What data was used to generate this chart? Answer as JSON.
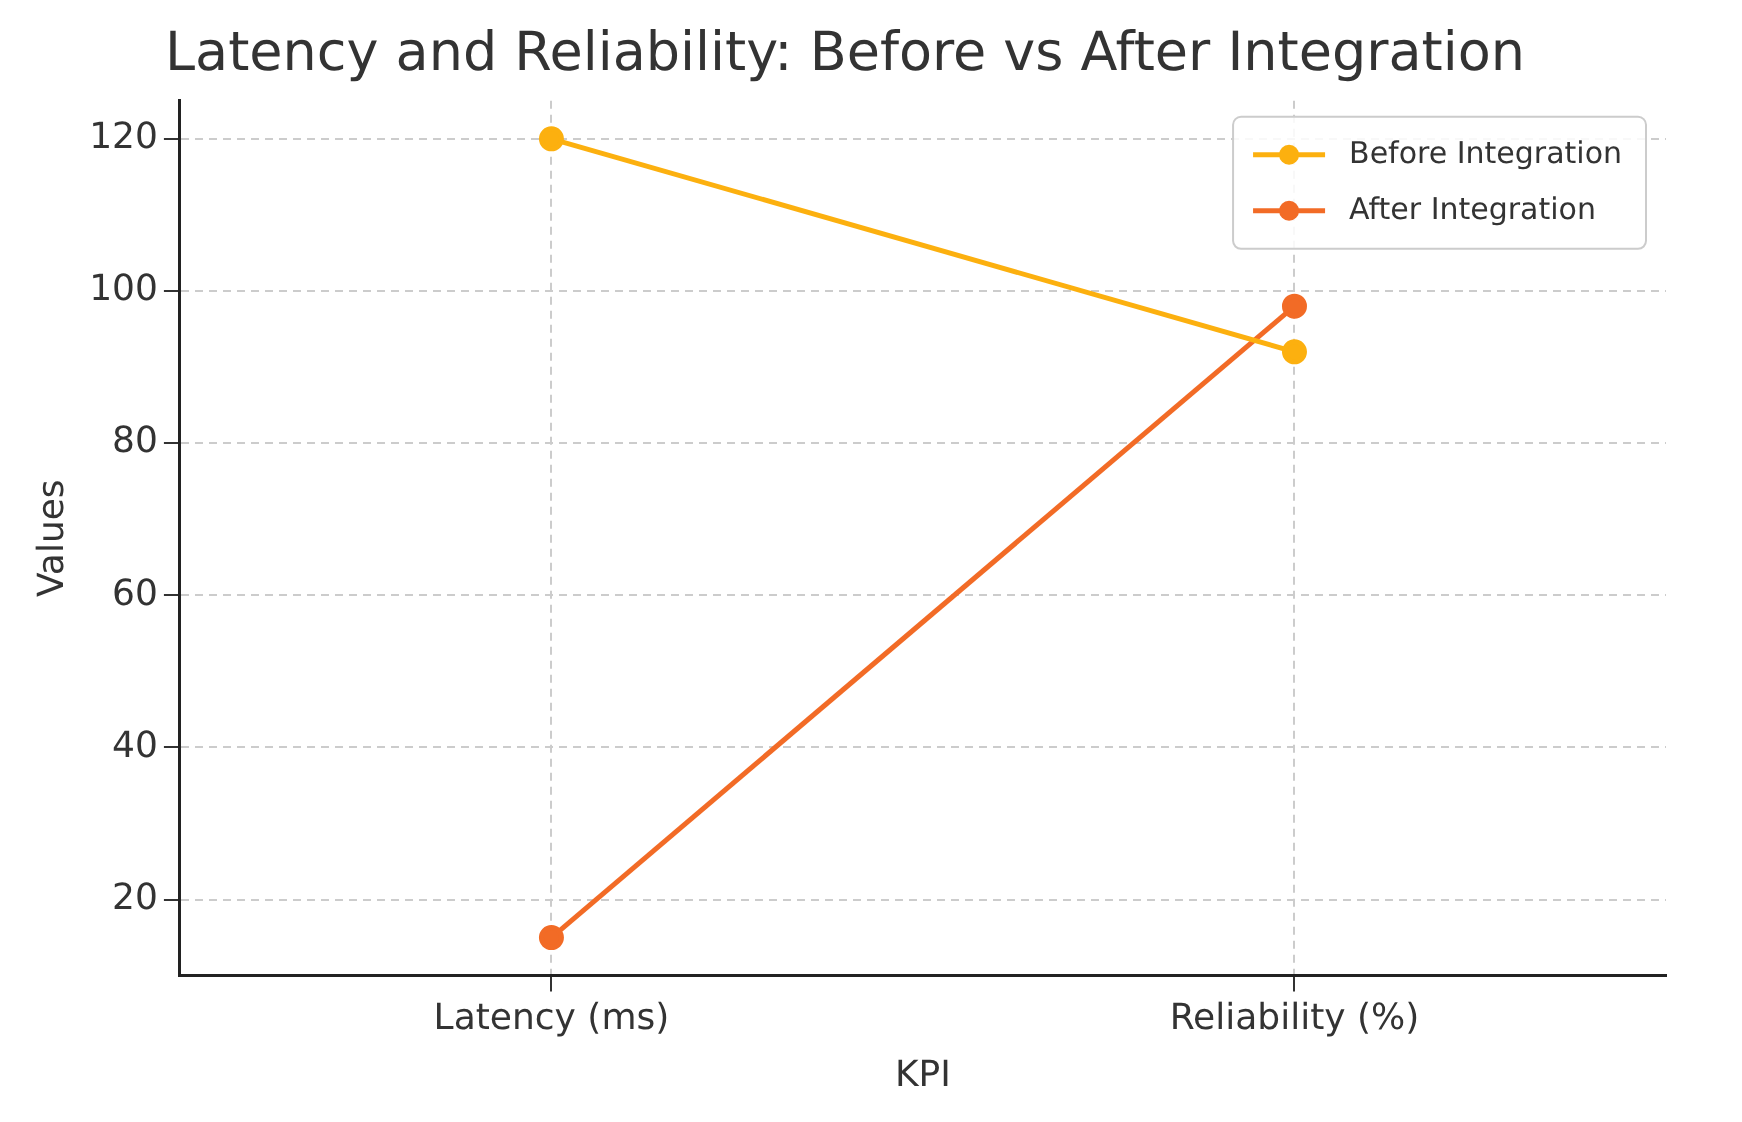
{
  "chart_data": {
    "type": "line",
    "title": "Latency and Reliability: Before vs After Integration",
    "xlabel": "KPI",
    "ylabel": "Values",
    "categories": [
      "Latency (ms)",
      "Reliability (%)"
    ],
    "series": [
      {
        "name": "Before Integration",
        "color": "#fcb00f",
        "values": [
          120,
          92
        ]
      },
      {
        "name": "After Integration",
        "color": "#f26b26",
        "values": [
          15,
          98
        ]
      }
    ],
    "ylim": [
      10,
      125
    ],
    "yticks": [
      20,
      40,
      60,
      80,
      100,
      120
    ],
    "grid": true,
    "legend": "top right",
    "marker": "circle",
    "line_style": "solid"
  }
}
